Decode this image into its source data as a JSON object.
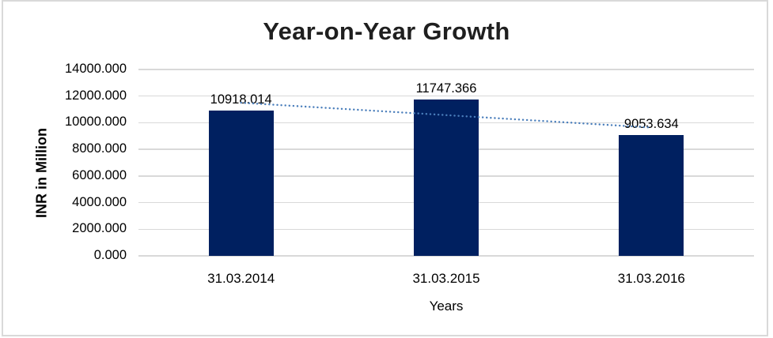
{
  "chart_data": {
    "type": "bar",
    "title": "Year-on-Year Growth",
    "xlabel": "Years",
    "ylabel": "INR in Million",
    "categories": [
      "31.03.2014",
      "31.03.2015",
      "31.03.2016"
    ],
    "values": [
      10918.014,
      11747.366,
      9053.634
    ],
    "data_labels": [
      "10918.014",
      "11747.366",
      "9053.634"
    ],
    "ylim": [
      0,
      14000
    ],
    "ytick_step": 2000,
    "yticks": [
      0,
      2000,
      4000,
      6000,
      8000,
      10000,
      12000,
      14000
    ],
    "ytick_labels": [
      "0.000",
      "2000.000",
      "4000.000",
      "6000.000",
      "8000.000",
      "10000.000",
      "12000.000",
      "14000.000"
    ],
    "grid": "horizontal",
    "legend": "none",
    "bar_color": "#002060",
    "gridline_color": "#d9d9d9",
    "frame_border_color": "#d9d9d9",
    "title_color": "#1f1f1f",
    "text_color": "#000000",
    "trendline": {
      "type": "linear",
      "style": "dotted",
      "color": "#4a7ebb"
    }
  }
}
